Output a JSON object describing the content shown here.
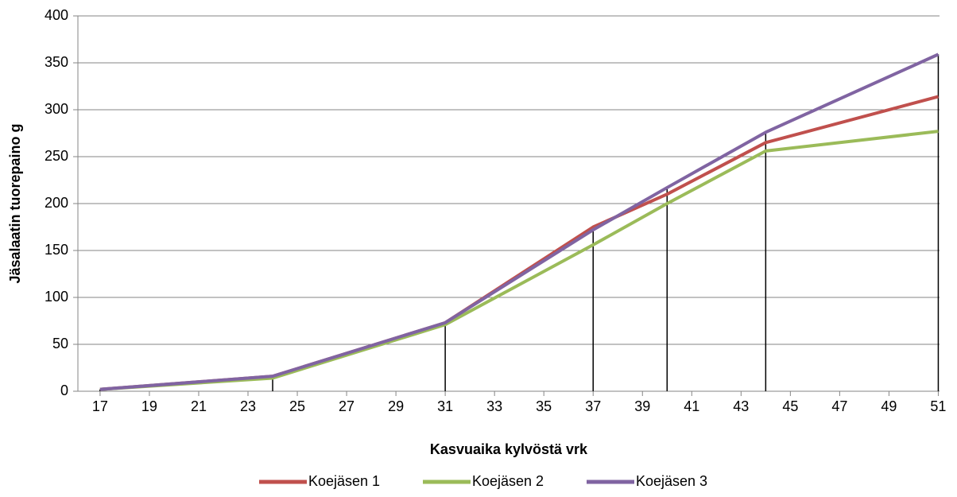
{
  "chart_data": {
    "type": "line",
    "x_label": "Kasvuaika kylvöstä vrk",
    "y_label": "Jäsalaatin tuorepaino g",
    "x": [
      17,
      24,
      31,
      37,
      40,
      44,
      51
    ],
    "series": [
      {
        "name": "Koejäsen 1",
        "color": "#c0504d",
        "values": [
          2,
          16,
          73,
          175,
          210,
          265,
          314
        ]
      },
      {
        "name": "Koejäsen 2",
        "color": "#9bbb59",
        "values": [
          2,
          14,
          71,
          156,
          200,
          256,
          277
        ]
      },
      {
        "name": "Koejäsen 3",
        "color": "#8064a2",
        "values": [
          2,
          16,
          73,
          172,
          217,
          276,
          359
        ]
      }
    ],
    "xlim": [
      16.1,
      51.05
    ],
    "xticks": [
      17,
      19,
      21,
      23,
      25,
      27,
      29,
      31,
      33,
      35,
      37,
      39,
      41,
      43,
      45,
      47,
      49,
      51
    ],
    "ylim": [
      0,
      400
    ],
    "yticks": [
      0,
      50,
      100,
      150,
      200,
      250,
      300,
      350,
      400
    ],
    "grid": true,
    "drop_lines": true,
    "legend": "bottom"
  }
}
